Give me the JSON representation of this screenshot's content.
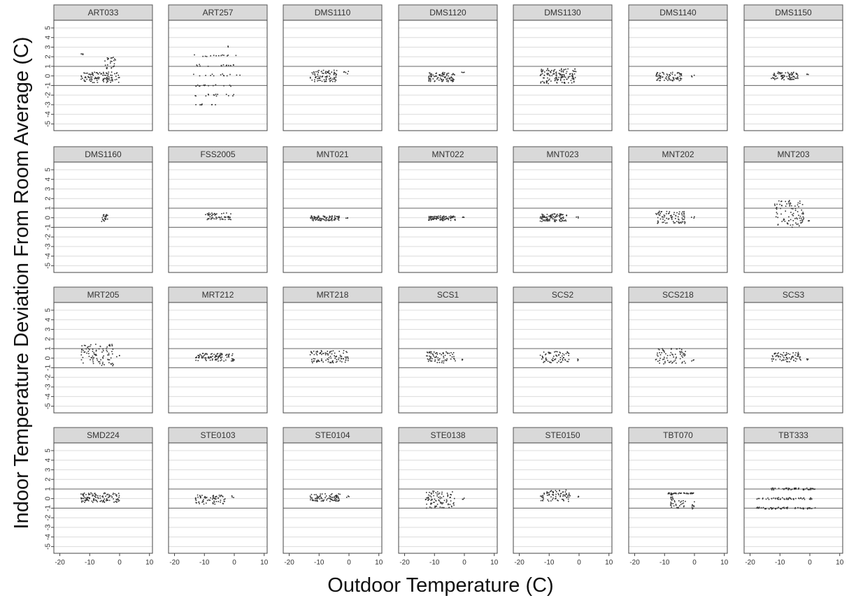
{
  "chart_data": {
    "type": "scatter",
    "layout": "faceted grid, 4 rows x 7 columns",
    "xlabel": "Outdoor Temperature (C)",
    "ylabel": "Indoor Temperature Deviation From Room Average (C)",
    "xlim": [
      -22,
      11
    ],
    "ylim": [
      -5.7,
      5.8
    ],
    "xticks": [
      -20,
      -10,
      0,
      10
    ],
    "yticks": [
      -5,
      -4,
      -3,
      -2,
      -1,
      0,
      1,
      2,
      3,
      4,
      5
    ],
    "reference_lines_y": [
      -1,
      1
    ],
    "grid": "horizontal gridlines at integer y",
    "point_color": "#333333",
    "panel_header_color": "#d9d9d9",
    "panels": [
      {
        "name": "ART033",
        "clusters": [
          {
            "x": [
              -13,
              -12
            ],
            "y": [
              2.2,
              2.3
            ],
            "n": 6
          },
          {
            "x": [
              -13,
              0
            ],
            "y": [
              -0.7,
              0.4
            ],
            "n": 110
          },
          {
            "x": [
              -5,
              -1
            ],
            "y": [
              0.7,
              2.0
            ],
            "n": 25
          }
        ]
      },
      {
        "name": "ART257",
        "clusters": [
          {
            "x": [
              -14,
              1
            ],
            "y": [
              2.0,
              2.2
            ],
            "n": 14
          },
          {
            "x": [
              -13,
              0
            ],
            "y": [
              1.0,
              1.2
            ],
            "n": 14
          },
          {
            "x": [
              -14,
              2
            ],
            "y": [
              0.0,
              0.2
            ],
            "n": 14
          },
          {
            "x": [
              -13,
              1
            ],
            "y": [
              -1.1,
              -0.9
            ],
            "n": 14
          },
          {
            "x": [
              -14,
              1
            ],
            "y": [
              -2.1,
              -1.9
            ],
            "n": 14
          },
          {
            "x": [
              -14,
              -6
            ],
            "y": [
              -3.1,
              -2.9
            ],
            "n": 8
          },
          {
            "x": [
              -3,
              -2
            ],
            "y": [
              3.0,
              3.1
            ],
            "n": 2
          }
        ]
      },
      {
        "name": "DMS1110",
        "clusters": [
          {
            "x": [
              -13,
              -4
            ],
            "y": [
              -0.6,
              0.6
            ],
            "n": 90
          },
          {
            "x": [
              -2,
              0
            ],
            "y": [
              0.2,
              0.5
            ],
            "n": 5
          }
        ]
      },
      {
        "name": "DMS1120",
        "clusters": [
          {
            "x": [
              -12,
              -3
            ],
            "y": [
              -0.6,
              0.4
            ],
            "n": 90
          },
          {
            "x": [
              -1,
              0
            ],
            "y": [
              0.3,
              0.5
            ],
            "n": 3
          }
        ]
      },
      {
        "name": "DMS1130",
        "clusters": [
          {
            "x": [
              -13,
              -1
            ],
            "y": [
              -0.8,
              0.8
            ],
            "n": 140
          }
        ]
      },
      {
        "name": "DMS1140",
        "clusters": [
          {
            "x": [
              -13,
              -4
            ],
            "y": [
              -0.5,
              0.4
            ],
            "n": 80
          },
          {
            "x": [
              -1,
              0
            ],
            "y": [
              -0.1,
              0.1
            ],
            "n": 3
          }
        ]
      },
      {
        "name": "DMS1150",
        "clusters": [
          {
            "x": [
              -13,
              -4
            ],
            "y": [
              -0.4,
              0.4
            ],
            "n": 80
          },
          {
            "x": [
              -1,
              0
            ],
            "y": [
              0.1,
              0.3
            ],
            "n": 3
          }
        ]
      },
      {
        "name": "DMS1160",
        "clusters": [
          {
            "x": [
              -6,
              -4
            ],
            "y": [
              -0.4,
              0.4
            ],
            "n": 25
          }
        ]
      },
      {
        "name": "FSS2005",
        "clusters": [
          {
            "x": [
              -10,
              -1
            ],
            "y": [
              -0.2,
              0.5
            ],
            "n": 60
          }
        ]
      },
      {
        "name": "MNT021",
        "clusters": [
          {
            "x": [
              -13,
              -3
            ],
            "y": [
              -0.3,
              0.2
            ],
            "n": 90
          },
          {
            "x": [
              -1,
              0
            ],
            "y": [
              -0.1,
              0.1
            ],
            "n": 3
          }
        ]
      },
      {
        "name": "MNT022",
        "clusters": [
          {
            "x": [
              -12,
              -3
            ],
            "y": [
              -0.3,
              0.2
            ],
            "n": 90
          },
          {
            "x": [
              -1,
              0
            ],
            "y": [
              -0.1,
              0.1
            ],
            "n": 3
          }
        ]
      },
      {
        "name": "MNT023",
        "clusters": [
          {
            "x": [
              -13,
              -4
            ],
            "y": [
              -0.4,
              0.4
            ],
            "n": 100
          },
          {
            "x": [
              -1,
              0
            ],
            "y": [
              -0.1,
              0.1
            ],
            "n": 3
          }
        ]
      },
      {
        "name": "MNT202",
        "clusters": [
          {
            "x": [
              -13,
              -3
            ],
            "y": [
              -0.6,
              0.7
            ],
            "n": 80
          },
          {
            "x": [
              -1,
              0
            ],
            "y": [
              -0.1,
              0.1
            ],
            "n": 3
          }
        ]
      },
      {
        "name": "MNT203",
        "clusters": [
          {
            "x": [
              -12,
              -2
            ],
            "y": [
              -1.0,
              1.8
            ],
            "n": 90
          },
          {
            "x": [
              -1,
              0
            ],
            "y": [
              -0.4,
              -0.2
            ],
            "n": 3
          }
        ]
      },
      {
        "name": "MRT205",
        "clusters": [
          {
            "x": [
              -13,
              -2
            ],
            "y": [
              -0.8,
              1.5
            ],
            "n": 90
          },
          {
            "x": [
              -1,
              0
            ],
            "y": [
              0.1,
              0.3
            ],
            "n": 3
          }
        ]
      },
      {
        "name": "MRT212",
        "clusters": [
          {
            "x": [
              -13,
              0
            ],
            "y": [
              -0.3,
              0.5
            ],
            "n": 100
          }
        ]
      },
      {
        "name": "MRT218",
        "clusters": [
          {
            "x": [
              -13,
              0
            ],
            "y": [
              -0.5,
              0.8
            ],
            "n": 100
          }
        ]
      },
      {
        "name": "SCS1",
        "clusters": [
          {
            "x": [
              -13,
              -3
            ],
            "y": [
              -0.5,
              0.7
            ],
            "n": 70
          },
          {
            "x": [
              -1,
              0
            ],
            "y": [
              -0.3,
              -0.1
            ],
            "n": 3
          }
        ]
      },
      {
        "name": "SCS2",
        "clusters": [
          {
            "x": [
              -13,
              -3
            ],
            "y": [
              -0.5,
              0.7
            ],
            "n": 70
          },
          {
            "x": [
              -1,
              0
            ],
            "y": [
              -0.3,
              -0.1
            ],
            "n": 3
          }
        ]
      },
      {
        "name": "SCS218",
        "clusters": [
          {
            "x": [
              -13,
              -3
            ],
            "y": [
              -0.6,
              1.0
            ],
            "n": 70
          },
          {
            "x": [
              -1,
              0
            ],
            "y": [
              -0.3,
              -0.1
            ],
            "n": 3
          }
        ]
      },
      {
        "name": "SCS3",
        "clusters": [
          {
            "x": [
              -13,
              -3
            ],
            "y": [
              -0.4,
              0.6
            ],
            "n": 70
          },
          {
            "x": [
              -1,
              0
            ],
            "y": [
              -0.2,
              0.0
            ],
            "n": 3
          }
        ]
      },
      {
        "name": "SMD224",
        "clusters": [
          {
            "x": [
              -13,
              0
            ],
            "y": [
              -0.4,
              0.6
            ],
            "n": 120
          }
        ]
      },
      {
        "name": "STE0103",
        "clusters": [
          {
            "x": [
              -13,
              -3
            ],
            "y": [
              -0.6,
              0.4
            ],
            "n": 70
          },
          {
            "x": [
              -1,
              0
            ],
            "y": [
              0.1,
              0.3
            ],
            "n": 3
          }
        ]
      },
      {
        "name": "STE0104",
        "clusters": [
          {
            "x": [
              -13,
              -3
            ],
            "y": [
              -0.3,
              0.5
            ],
            "n": 90
          },
          {
            "x": [
              -1,
              0
            ],
            "y": [
              0.1,
              0.3
            ],
            "n": 3
          }
        ]
      },
      {
        "name": "STE0138",
        "clusters": [
          {
            "x": [
              -13,
              -3
            ],
            "y": [
              -1.0,
              0.8
            ],
            "n": 90
          },
          {
            "x": [
              -1,
              0
            ],
            "y": [
              -0.1,
              0.1
            ],
            "n": 3
          }
        ]
      },
      {
        "name": "STE0150",
        "clusters": [
          {
            "x": [
              -13,
              -3
            ],
            "y": [
              -0.3,
              0.9
            ],
            "n": 80
          },
          {
            "x": [
              -1,
              0
            ],
            "y": [
              0.1,
              0.3
            ],
            "n": 3
          }
        ]
      },
      {
        "name": "TBT070",
        "clusters": [
          {
            "x": [
              -9,
              0
            ],
            "y": [
              0.5,
              0.6
            ],
            "n": 45
          },
          {
            "x": [
              -8,
              -7
            ],
            "y": [
              -1.1,
              0.5
            ],
            "n": 20
          },
          {
            "x": [
              -7,
              -3
            ],
            "y": [
              -1.0,
              -0.2
            ],
            "n": 20
          },
          {
            "x": [
              -1,
              0
            ],
            "y": [
              -1.1,
              -0.3
            ],
            "n": 10
          }
        ]
      },
      {
        "name": "TBT333",
        "clusters": [
          {
            "x": [
              -13,
              2
            ],
            "y": [
              0.9,
              1.1
            ],
            "n": 45
          },
          {
            "x": [
              -18,
              1
            ],
            "y": [
              -0.1,
              0.1
            ],
            "n": 50
          },
          {
            "x": [
              -18,
              2
            ],
            "y": [
              -1.1,
              -0.9
            ],
            "n": 50
          }
        ]
      }
    ]
  }
}
